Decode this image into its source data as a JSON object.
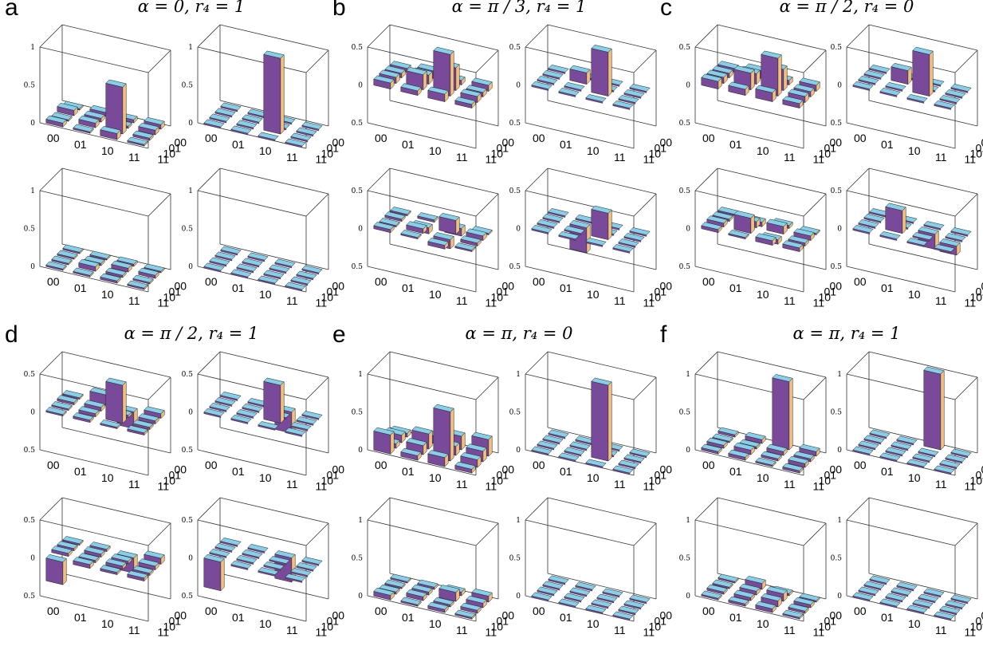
{
  "colors": {
    "top": "#87cfe8",
    "left": "#7a4a9a",
    "right": "#f2c07e",
    "line": "#222222"
  },
  "tick_labels": {
    "x": [
      "00",
      "01",
      "10",
      "11"
    ],
    "y": [
      "00",
      "01",
      "10",
      "11"
    ]
  },
  "panels": [
    {
      "letter": "a",
      "title": "α = 0, r₄ = 1",
      "plots": [
        {
          "zticks": [
            "1",
            "0.5",
            "0"
          ],
          "zmin": 0,
          "zmax": 1,
          "bars": [
            [
              0.05,
              0.02,
              0.08,
              0.02
            ],
            [
              0.02,
              0.06,
              0.62,
              0.03
            ],
            [
              0.07,
              0.05,
              0.03,
              0.06
            ],
            [
              0.02,
              0.05,
              0.04,
              0.06
            ]
          ]
        },
        {
          "zticks": [
            "1",
            "0.5",
            "0"
          ],
          "zmin": 0,
          "zmax": 1,
          "bars": [
            [
              0,
              0,
              0,
              0
            ],
            [
              0,
              0,
              1.0,
              0
            ],
            [
              0,
              0,
              0,
              0
            ],
            [
              0,
              0,
              0,
              0
            ]
          ]
        },
        {
          "zticks": [
            "1",
            "0.5",
            "0"
          ],
          "zmin": 0,
          "zmax": 1,
          "bars": [
            [
              0.02,
              0.02,
              0.03,
              0.02
            ],
            [
              0.02,
              0.06,
              0.03,
              0.02
            ],
            [
              0.02,
              0.03,
              0.05,
              0.04
            ],
            [
              0.02,
              0.02,
              0.03,
              0.02
            ]
          ]
        },
        {
          "zticks": [
            "1",
            "0.5",
            "0"
          ],
          "zmin": 0,
          "zmax": 1,
          "bars": [
            [
              0,
              0,
              0,
              0
            ],
            [
              0,
              0,
              0,
              0
            ],
            [
              0,
              0,
              0,
              0
            ],
            [
              0,
              0,
              0,
              0
            ]
          ]
        }
      ]
    },
    {
      "letter": "b",
      "title": "α = π / 3, r₄ = 1",
      "plots": [
        {
          "zticks": [
            "0.5",
            "0",
            "0.5"
          ],
          "zmin": -0.5,
          "zmax": 0.5,
          "bars": [
            [
              0.08,
              0.06,
              0.1,
              0.05
            ],
            [
              0.08,
              0.2,
              0.55,
              0.08
            ],
            [
              0.06,
              0.12,
              0.3,
              0.06
            ],
            [
              0.05,
              0.1,
              0.06,
              0.08
            ]
          ]
        },
        {
          "zticks": [
            "0.5",
            "0",
            "0.5"
          ],
          "zmin": -0.5,
          "zmax": 0.5,
          "bars": [
            [
              0,
              0,
              0,
              0
            ],
            [
              0,
              0,
              0.58,
              0
            ],
            [
              0,
              0.15,
              0,
              0
            ],
            [
              0,
              0,
              0,
              0
            ]
          ]
        },
        {
          "zticks": [
            "0.5",
            "0",
            "0.5"
          ],
          "zmin": -0.5,
          "zmax": 0.5,
          "bars": [
            [
              0.04,
              0.02,
              -0.05,
              0.02
            ],
            [
              0.02,
              0.06,
              -0.12,
              0.04
            ],
            [
              0.03,
              -0.08,
              0.18,
              0.06
            ],
            [
              0.02,
              0.03,
              -0.1,
              0.02
            ]
          ]
        },
        {
          "zticks": [
            "0.5",
            "0",
            "0.5"
          ],
          "zmin": -0.5,
          "zmax": 0.5,
          "bars": [
            [
              0,
              0,
              0,
              0
            ],
            [
              0,
              0,
              0.35,
              0
            ],
            [
              0,
              -0.33,
              0,
              0
            ],
            [
              0,
              0,
              0,
              0
            ]
          ]
        }
      ]
    },
    {
      "letter": "c",
      "title": "α = π / 2, r₄ = 0",
      "plots": [
        {
          "zticks": [
            "0.5",
            "0",
            "0.5"
          ],
          "zmin": -0.5,
          "zmax": 0.5,
          "bars": [
            [
              0.1,
              0.08,
              0.12,
              0.06
            ],
            [
              0.08,
              0.22,
              0.5,
              0.08
            ],
            [
              0.06,
              0.14,
              0.28,
              0.07
            ],
            [
              0.05,
              0.1,
              0.06,
              0.08
            ]
          ]
        },
        {
          "zticks": [
            "0.5",
            "0",
            "0.5"
          ],
          "zmin": -0.5,
          "zmax": 0.5,
          "bars": [
            [
              0,
              0,
              0,
              0
            ],
            [
              0,
              0,
              0.55,
              0
            ],
            [
              0,
              0.18,
              0,
              0
            ],
            [
              0,
              0,
              0,
              0
            ]
          ]
        },
        {
          "zticks": [
            "0.5",
            "0",
            "0.5"
          ],
          "zmin": -0.5,
          "zmax": 0.5,
          "bars": [
            [
              0.04,
              0.02,
              0.06,
              0.05
            ],
            [
              0.05,
              0.2,
              -0.06,
              0.04
            ],
            [
              0.03,
              0.08,
              0.1,
              0.06
            ],
            [
              0.02,
              -0.06,
              0.04,
              0.02
            ]
          ]
        },
        {
          "zticks": [
            "0.5",
            "0",
            "0.5"
          ],
          "zmin": -0.5,
          "zmax": 0.5,
          "bars": [
            [
              0,
              0,
              0,
              0
            ],
            [
              0,
              0.3,
              0,
              -0.12
            ],
            [
              0,
              0,
              -0.2,
              0
            ],
            [
              0,
              0,
              0,
              0
            ]
          ]
        }
      ]
    },
    {
      "letter": "d",
      "title": "α = π / 2, r₄ = 1",
      "plots": [
        {
          "zticks": [
            "0.5",
            "0",
            "0.5"
          ],
          "zmin": -0.5,
          "zmax": 0.5,
          "bars": [
            [
              0.02,
              0.03,
              0.02,
              0.03
            ],
            [
              0.02,
              0.04,
              0.5,
              0.03
            ],
            [
              0.03,
              0.05,
              0.03,
              0.04
            ],
            [
              0.02,
              0.14,
              -0.22,
              0.06
            ]
          ]
        },
        {
          "zticks": [
            "0.5",
            "0",
            "0.5"
          ],
          "zmin": -0.5,
          "zmax": 0.5,
          "bars": [
            [
              0,
              0,
              0,
              0
            ],
            [
              0,
              0,
              0.5,
              0
            ],
            [
              0,
              0,
              0,
              0
            ],
            [
              0,
              0,
              -0.28,
              0
            ]
          ]
        },
        {
          "zticks": [
            "0.5",
            "0",
            "0.5"
          ],
          "zmin": -0.5,
          "zmax": 0.5,
          "bars": [
            [
              -0.3,
              0.05,
              0.03,
              0.04
            ],
            [
              0.04,
              0.03,
              0.04,
              0.03
            ],
            [
              0.03,
              0.04,
              0.03,
              0.05
            ],
            [
              0.02,
              0.03,
              -0.2,
              0.08
            ]
          ]
        },
        {
          "zticks": [
            "0.5",
            "0",
            "0.5"
          ],
          "zmin": -0.5,
          "zmax": 0.5,
          "bars": [
            [
              -0.38,
              0,
              0,
              0
            ],
            [
              0,
              0,
              0,
              0
            ],
            [
              0,
              0,
              0,
              0
            ],
            [
              0,
              0,
              -0.32,
              0
            ]
          ]
        }
      ]
    },
    {
      "letter": "e",
      "title": "α = π, r₄ = 0",
      "plots": [
        {
          "zticks": [
            "1",
            "0.5",
            "0"
          ],
          "zmin": 0,
          "zmax": 1,
          "bars": [
            [
              0.25,
              0.06,
              0.12,
              0.05
            ],
            [
              0.06,
              0.12,
              0.65,
              0.1
            ],
            [
              0.1,
              0.2,
              0.12,
              0.14
            ],
            [
              0.05,
              0.1,
              0.18,
              0.22
            ]
          ]
        },
        {
          "zticks": [
            "1",
            "0.5",
            "0"
          ],
          "zmin": 0,
          "zmax": 1,
          "bars": [
            [
              0,
              0,
              0,
              0
            ],
            [
              0,
              0,
              1.0,
              0
            ],
            [
              0,
              0,
              0,
              0
            ],
            [
              0,
              0,
              0,
              0
            ]
          ]
        },
        {
          "zticks": [
            "1",
            "0.5",
            "0"
          ],
          "zmin": 0,
          "zmax": 1,
          "bars": [
            [
              0.06,
              0.02,
              0.04,
              0.02
            ],
            [
              0.03,
              0.05,
              0.03,
              0.04
            ],
            [
              0.02,
              0.04,
              0.12,
              0.06
            ],
            [
              0.02,
              0.03,
              0.05,
              0.08
            ]
          ]
        },
        {
          "zticks": [
            "1",
            "0.5",
            "0"
          ],
          "zmin": 0,
          "zmax": 1,
          "bars": [
            [
              0,
              0,
              0,
              0
            ],
            [
              0,
              0,
              0,
              0
            ],
            [
              0,
              0,
              0,
              0
            ],
            [
              0,
              0,
              0,
              0
            ]
          ]
        }
      ]
    },
    {
      "letter": "f",
      "title": "α = π, r₄ = 1",
      "plots": [
        {
          "zticks": [
            "1",
            "0.5",
            "0"
          ],
          "zmin": 0,
          "zmax": 1,
          "bars": [
            [
              0.03,
              0.04,
              0.02,
              0.03
            ],
            [
              0.04,
              0.06,
              0.03,
              0.05
            ],
            [
              0.02,
              0.03,
              0.05,
              0.04
            ],
            [
              0.03,
              0.05,
              0.9,
              0.06
            ]
          ]
        },
        {
          "zticks": [
            "1",
            "0.5",
            "0"
          ],
          "zmin": 0,
          "zmax": 1,
          "bars": [
            [
              0,
              0,
              0,
              0
            ],
            [
              0,
              0,
              0,
              0
            ],
            [
              0,
              0,
              0,
              0
            ],
            [
              0,
              0,
              1.0,
              0
            ]
          ]
        },
        {
          "zticks": [
            "1",
            "0.5",
            "0"
          ],
          "zmin": 0,
          "zmax": 1,
          "bars": [
            [
              0.02,
              0.03,
              0.05,
              0.02
            ],
            [
              0.03,
              0.04,
              0.08,
              0.03
            ],
            [
              0.02,
              0.05,
              0.1,
              0.04
            ],
            [
              0.02,
              0.08,
              0.03,
              0.02
            ]
          ]
        },
        {
          "zticks": [
            "1",
            "0.5",
            "0"
          ],
          "zmin": 0,
          "zmax": 1,
          "bars": [
            [
              0,
              0,
              0,
              0
            ],
            [
              0,
              0,
              0,
              0
            ],
            [
              0,
              0,
              0,
              0
            ],
            [
              0,
              0,
              0,
              0
            ]
          ]
        }
      ]
    }
  ],
  "chart_data": {
    "type": "bar3d",
    "description_labels": [
      "a",
      "b",
      "c",
      "d",
      "e",
      "f"
    ],
    "xcategories": [
      "00",
      "01",
      "10",
      "11"
    ],
    "ycategories": [
      "00",
      "01",
      "10",
      "11"
    ]
  }
}
